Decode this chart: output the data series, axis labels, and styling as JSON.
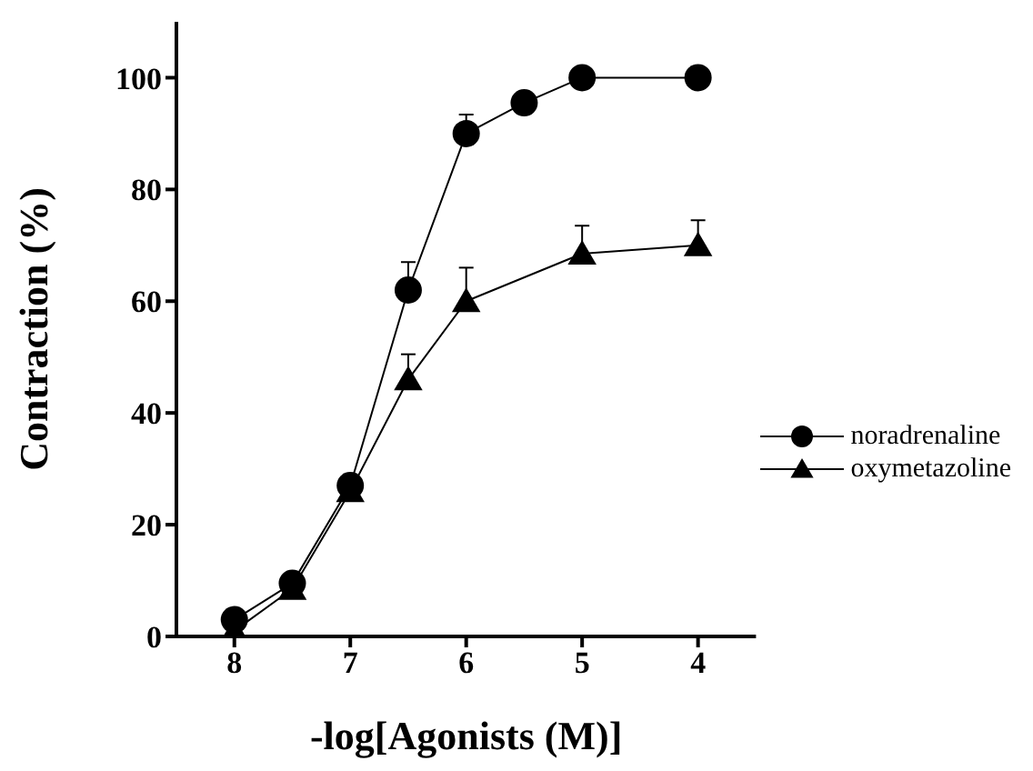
{
  "chart_data": {
    "type": "line",
    "xlabel": "-log[Agonists (M)]",
    "ylabel": "Contraction (%)",
    "x": [
      8,
      7.5,
      7,
      6.5,
      6,
      5.5,
      5,
      4
    ],
    "series": [
      {
        "name": "noradrenaline",
        "color": "#000000",
        "marker": "circle",
        "values": [
          3,
          9.5,
          27,
          62,
          90,
          95.5,
          100,
          100
        ],
        "errors": [
          null,
          null,
          [
            27,
            29
          ],
          [
            62,
            67
          ],
          [
            90,
            93.4
          ],
          null,
          null,
          null
        ]
      },
      {
        "name": "oxymetazoline",
        "color": "#000000",
        "marker": "triangle",
        "values": [
          1,
          8.5,
          26,
          46,
          60,
          null,
          68.5,
          70
        ],
        "errors": [
          null,
          null,
          null,
          [
            46,
            50.5
          ],
          [
            60,
            66
          ],
          null,
          [
            68.5,
            73.5
          ],
          [
            70,
            74.5
          ]
        ]
      }
    ],
    "xlim": [
      8.5,
      3.5
    ],
    "xticks": [
      8,
      7,
      6,
      5,
      4
    ],
    "ylim": [
      0,
      110
    ],
    "yticks": [
      0,
      20,
      40,
      60,
      80,
      100
    ],
    "grid": false,
    "legend": "bottom right",
    "line_style": "solid"
  }
}
